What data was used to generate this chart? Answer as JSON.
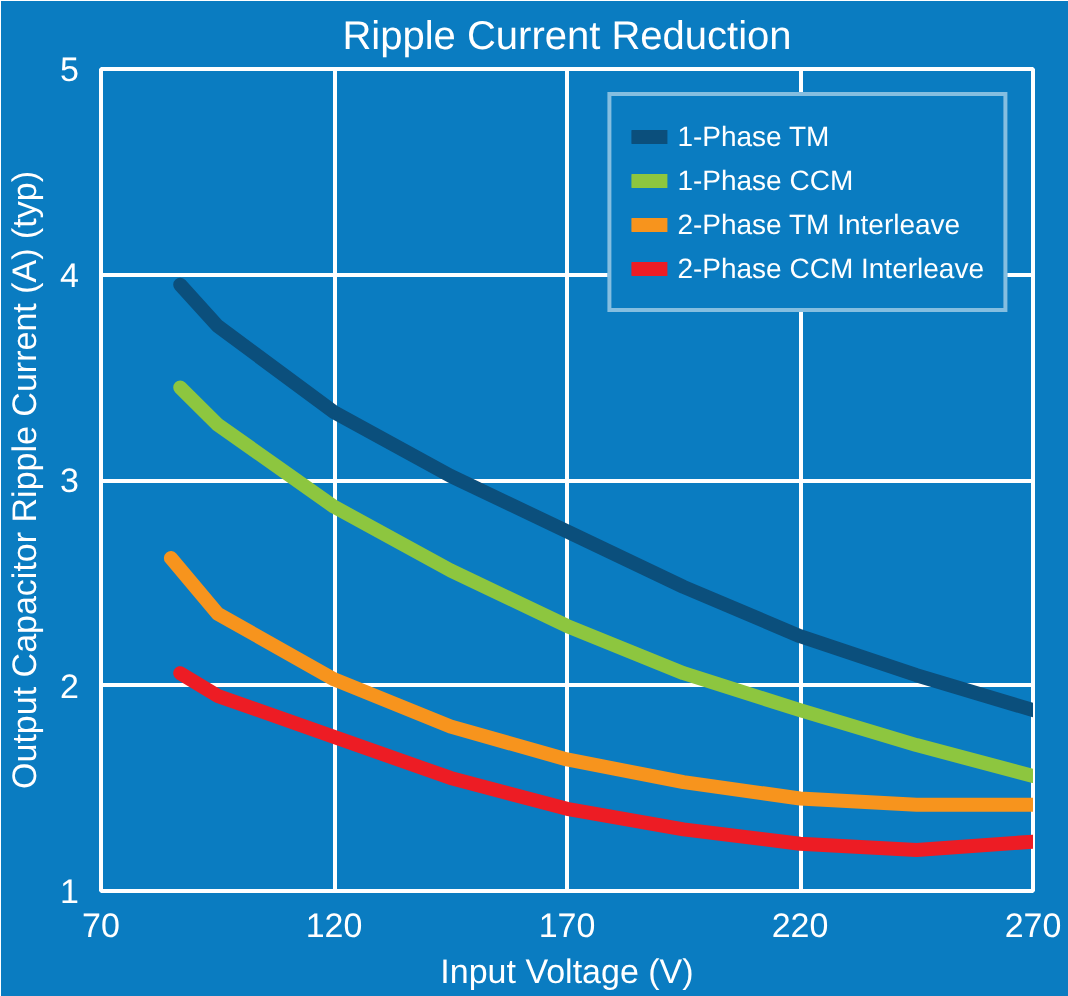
{
  "chart_data": {
    "type": "line",
    "title": "Ripple Current Reduction",
    "xlabel": "Input Voltage (V)",
    "ylabel": "Output Capacitor Ripple Current (A) (typ)",
    "xlim": [
      70,
      270
    ],
    "xticks": [
      70,
      120,
      170,
      220,
      270
    ],
    "ylim": [
      1,
      5
    ],
    "yticks": [
      1,
      2,
      3,
      4,
      5
    ],
    "grid": true,
    "legend": "top right",
    "series": [
      {
        "name": "1-Phase TM",
        "color": "#0b4f7c",
        "x": [
          87,
          95,
          120,
          145,
          170,
          195,
          220,
          245,
          270
        ],
        "values": [
          3.95,
          3.75,
          3.33,
          3.02,
          2.75,
          2.48,
          2.24,
          2.05,
          1.88
        ]
      },
      {
        "name": "1-Phase CCM",
        "color": "#8dc63f",
        "x": [
          87,
          95,
          120,
          145,
          170,
          195,
          220,
          245,
          270
        ],
        "values": [
          3.45,
          3.27,
          2.87,
          2.56,
          2.29,
          2.06,
          1.88,
          1.71,
          1.56
        ]
      },
      {
        "name": "2-Phase TM Interleave",
        "color": "#f7941d",
        "x": [
          85,
          95,
          120,
          145,
          170,
          195,
          220,
          245,
          270
        ],
        "values": [
          2.62,
          2.35,
          2.03,
          1.8,
          1.64,
          1.53,
          1.45,
          1.42,
          1.42
        ]
      },
      {
        "name": "2-Phase CCM Interleave",
        "color": "#ed1c24",
        "x": [
          87,
          95,
          120,
          145,
          170,
          195,
          220,
          245,
          270
        ],
        "values": [
          2.06,
          1.95,
          1.75,
          1.55,
          1.4,
          1.3,
          1.23,
          1.2,
          1.24
        ]
      }
    ]
  }
}
